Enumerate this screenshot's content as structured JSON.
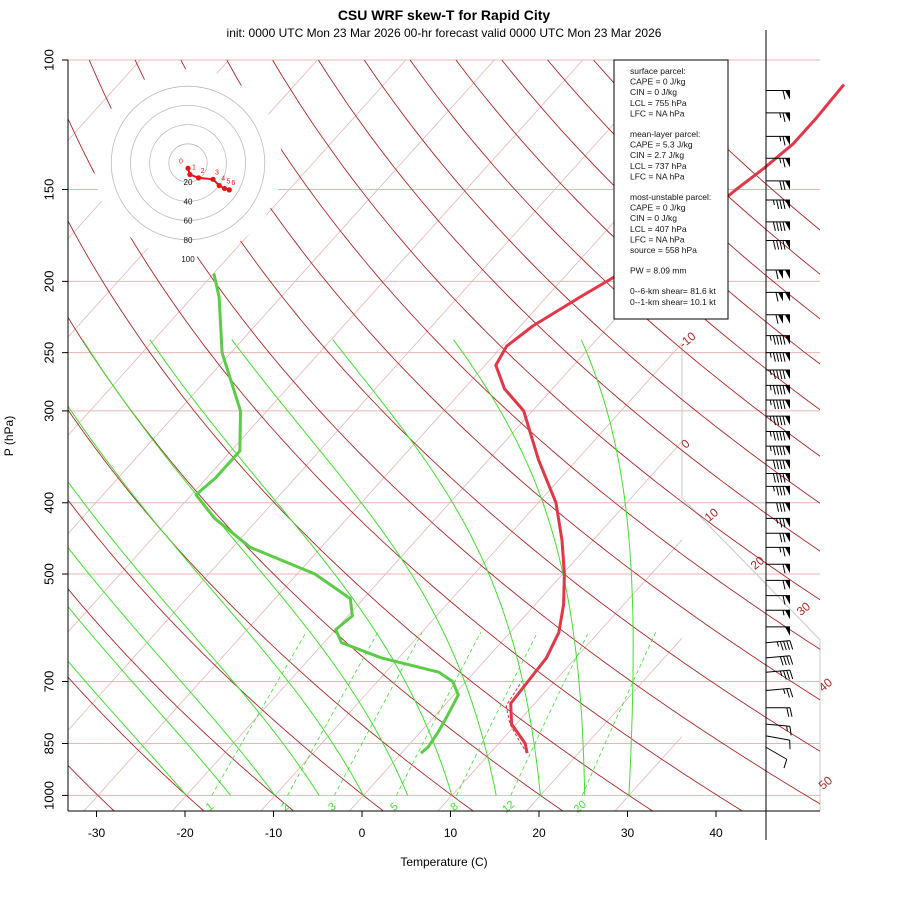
{
  "chart_data": {
    "type": "line",
    "title": "CSU WRF skew-T for Rapid City",
    "subtitle": "init: 0000 UTC Mon 23 Mar 2026     00-hr forecast valid 0000 UTC Mon 23 Mar 2026",
    "xlabel": "Temperature (C)",
    "ylabel": "P (hPa)",
    "xlim": [
      -33,
      45
    ],
    "ylim": [
      1050,
      100
    ],
    "y_scale": "log",
    "x_ticks": [
      "-30",
      "-20",
      "-10",
      "0",
      "10",
      "20",
      "30",
      "40"
    ],
    "y_ticks": [
      "100",
      "150",
      "200",
      "250",
      "300",
      "400",
      "500",
      "700",
      "850",
      "1000"
    ],
    "colors": {
      "temperature": "#e03848",
      "dewpoint": "#5ccc48",
      "dry_adiabat": "#a82828",
      "moist_adiabat": "#44dd33",
      "mixing_ratio": "#44dd33",
      "isobar": "#e8b4b4",
      "isotherm": "#e8b4b4",
      "hodograph": "#ee1111"
    },
    "series": [
      {
        "name": "temperature",
        "points": [
          {
            "p": 876,
            "t": 14.2
          },
          {
            "p": 850,
            "t": 13.0
          },
          {
            "p": 800,
            "t": 9.5
          },
          {
            "p": 750,
            "t": 7.3
          },
          {
            "p": 700,
            "t": 7.0
          },
          {
            "p": 650,
            "t": 6.7
          },
          {
            "p": 600,
            "t": 5.5
          },
          {
            "p": 550,
            "t": 3.2
          },
          {
            "p": 500,
            "t": 0.2
          },
          {
            "p": 450,
            "t": -3.5
          },
          {
            "p": 400,
            "t": -8.0
          },
          {
            "p": 350,
            "t": -14.3
          },
          {
            "p": 300,
            "t": -21.0
          },
          {
            "p": 280,
            "t": -25.4
          },
          {
            "p": 260,
            "t": -28.8
          },
          {
            "p": 245,
            "t": -29.5
          },
          {
            "p": 230,
            "t": -28.6
          },
          {
            "p": 210,
            "t": -26.2
          },
          {
            "p": 190,
            "t": -23.3
          },
          {
            "p": 170,
            "t": -21.0
          },
          {
            "p": 150,
            "t": -19.5
          },
          {
            "p": 140,
            "t": -18.5
          },
          {
            "p": 130,
            "t": -17.7
          },
          {
            "p": 120,
            "t": -17.7
          },
          {
            "p": 108,
            "t": -18.0
          }
        ]
      },
      {
        "name": "dewpoint",
        "points": [
          {
            "p": 876,
            "t": 2.2
          },
          {
            "p": 860,
            "t": 2.4
          },
          {
            "p": 820,
            "t": 2.0
          },
          {
            "p": 780,
            "t": 1.4
          },
          {
            "p": 730,
            "t": 0.5
          },
          {
            "p": 700,
            "t": -1.5
          },
          {
            "p": 680,
            "t": -4.0
          },
          {
            "p": 650,
            "t": -12.0
          },
          {
            "p": 620,
            "t": -18.0
          },
          {
            "p": 595,
            "t": -20.0
          },
          {
            "p": 570,
            "t": -19.5
          },
          {
            "p": 540,
            "t": -21.5
          },
          {
            "p": 500,
            "t": -28.0
          },
          {
            "p": 460,
            "t": -38.0
          },
          {
            "p": 420,
            "t": -45.0
          },
          {
            "p": 390,
            "t": -49.5
          },
          {
            "p": 370,
            "t": -49.0
          },
          {
            "p": 340,
            "t": -49.0
          },
          {
            "p": 300,
            "t": -53.0
          },
          {
            "p": 250,
            "t": -61.0
          },
          {
            "p": 210,
            "t": -67.0
          },
          {
            "p": 195,
            "t": -70.0
          }
        ]
      }
    ],
    "parcel_trace": [
      {
        "p": 876,
        "t": 14.2
      },
      {
        "p": 850,
        "t": 12.5
      },
      {
        "p": 800,
        "t": 9.3
      },
      {
        "p": 755,
        "t": 7.0
      },
      {
        "p": 700,
        "t": 6.3
      }
    ],
    "dry_adiabats_c": [
      -30,
      -20,
      -10,
      0,
      10,
      20,
      30,
      40,
      50,
      60,
      70,
      80,
      90,
      100,
      110,
      120,
      130,
      140,
      150,
      160,
      170
    ],
    "moist_adiabats_c": [
      -20,
      -15,
      -10,
      -5,
      0,
      5,
      10,
      15,
      20,
      25,
      30
    ],
    "mixing_ratio_lines": [
      "1",
      "2",
      "3",
      "5",
      "8",
      "12",
      "20"
    ],
    "isotherm_labels": [
      "-10",
      "0",
      "10",
      "20",
      "30",
      "40",
      "50"
    ],
    "hodograph": {
      "ring_labels": [
        "20",
        "40",
        "60",
        "80",
        "100"
      ],
      "heights": [
        "0",
        "1",
        "2",
        "3",
        "4",
        "5",
        "6"
      ],
      "points": [
        {
          "h": "0",
          "u": 0.0,
          "v": -5.5
        },
        {
          "h": "1",
          "u": 2.0,
          "v": -12.0
        },
        {
          "h": "2",
          "u": 11.0,
          "v": -15.5
        },
        {
          "h": "3",
          "u": 26.0,
          "v": -17.0
        },
        {
          "h": "4",
          "u": 32.5,
          "v": -23.5
        },
        {
          "h": "5",
          "u": 38.0,
          "v": -26.5
        },
        {
          "h": "6",
          "u": 43.0,
          "v": -28.0
        }
      ]
    },
    "stats": [
      "surface parcel:",
      "CAPE = 0 J/kg",
      "CIN = 0 J/kg",
      "LCL = 755 hPa",
      "LFC = NA hPa",
      "",
      "mean-layer parcel:",
      "CAPE = 5.3 J/kg",
      "CIN = 2.7 J/kg",
      "LCL = 737 hPa",
      "LFC = NA hPa",
      "",
      "most-unstable parcel:",
      "CAPE = 0 J/kg",
      "CIN = 0 J/kg",
      "LCL = 407 hPa",
      "LFC = NA hPa",
      "source = 558 hPa",
      "",
      "PW =  8.09 mm",
      "",
      "0--6-km shear= 81.6 kt",
      "0--1-km shear= 10.1 kt"
    ],
    "wind_barbs": [
      {
        "p": 860,
        "speed": 10,
        "dir": 300
      },
      {
        "p": 830,
        "speed": 10,
        "dir": 280
      },
      {
        "p": 800,
        "speed": 15,
        "dir": 275
      },
      {
        "p": 760,
        "speed": 20,
        "dir": 270
      },
      {
        "p": 720,
        "speed": 25,
        "dir": 265
      },
      {
        "p": 680,
        "speed": 35,
        "dir": 265
      },
      {
        "p": 650,
        "speed": 40,
        "dir": 265
      },
      {
        "p": 620,
        "speed": 45,
        "dir": 265
      },
      {
        "p": 590,
        "speed": 50,
        "dir": 270
      },
      {
        "p": 560,
        "speed": 55,
        "dir": 270
      },
      {
        "p": 535,
        "speed": 60,
        "dir": 270
      },
      {
        "p": 510,
        "speed": 60,
        "dir": 270
      },
      {
        "p": 485,
        "speed": 60,
        "dir": 270
      },
      {
        "p": 460,
        "speed": 65,
        "dir": 270
      },
      {
        "p": 440,
        "speed": 70,
        "dir": 270
      },
      {
        "p": 420,
        "speed": 75,
        "dir": 270
      },
      {
        "p": 400,
        "speed": 80,
        "dir": 270
      },
      {
        "p": 380,
        "speed": 85,
        "dir": 270
      },
      {
        "p": 365,
        "speed": 90,
        "dir": 270
      },
      {
        "p": 350,
        "speed": 90,
        "dir": 270
      },
      {
        "p": 335,
        "speed": 95,
        "dir": 270
      },
      {
        "p": 320,
        "speed": 95,
        "dir": 270
      },
      {
        "p": 305,
        "speed": 95,
        "dir": 270
      },
      {
        "p": 290,
        "speed": 95,
        "dir": 270
      },
      {
        "p": 277,
        "speed": 95,
        "dir": 270
      },
      {
        "p": 264,
        "speed": 95,
        "dir": 270
      },
      {
        "p": 250,
        "speed": 95,
        "dir": 270
      },
      {
        "p": 237,
        "speed": 95,
        "dir": 270
      },
      {
        "p": 222,
        "speed": 110,
        "dir": 270
      },
      {
        "p": 207,
        "speed": 110,
        "dir": 270
      },
      {
        "p": 193,
        "speed": 110,
        "dir": 270
      },
      {
        "p": 176,
        "speed": 90,
        "dir": 270
      },
      {
        "p": 166,
        "speed": 90,
        "dir": 270
      },
      {
        "p": 155,
        "speed": 85,
        "dir": 270
      },
      {
        "p": 146,
        "speed": 70,
        "dir": 270
      },
      {
        "p": 136,
        "speed": 65,
        "dir": 270
      },
      {
        "p": 127,
        "speed": 65,
        "dir": 270
      },
      {
        "p": 118,
        "speed": 65,
        "dir": 270
      },
      {
        "p": 110,
        "speed": 60,
        "dir": 270
      }
    ]
  }
}
